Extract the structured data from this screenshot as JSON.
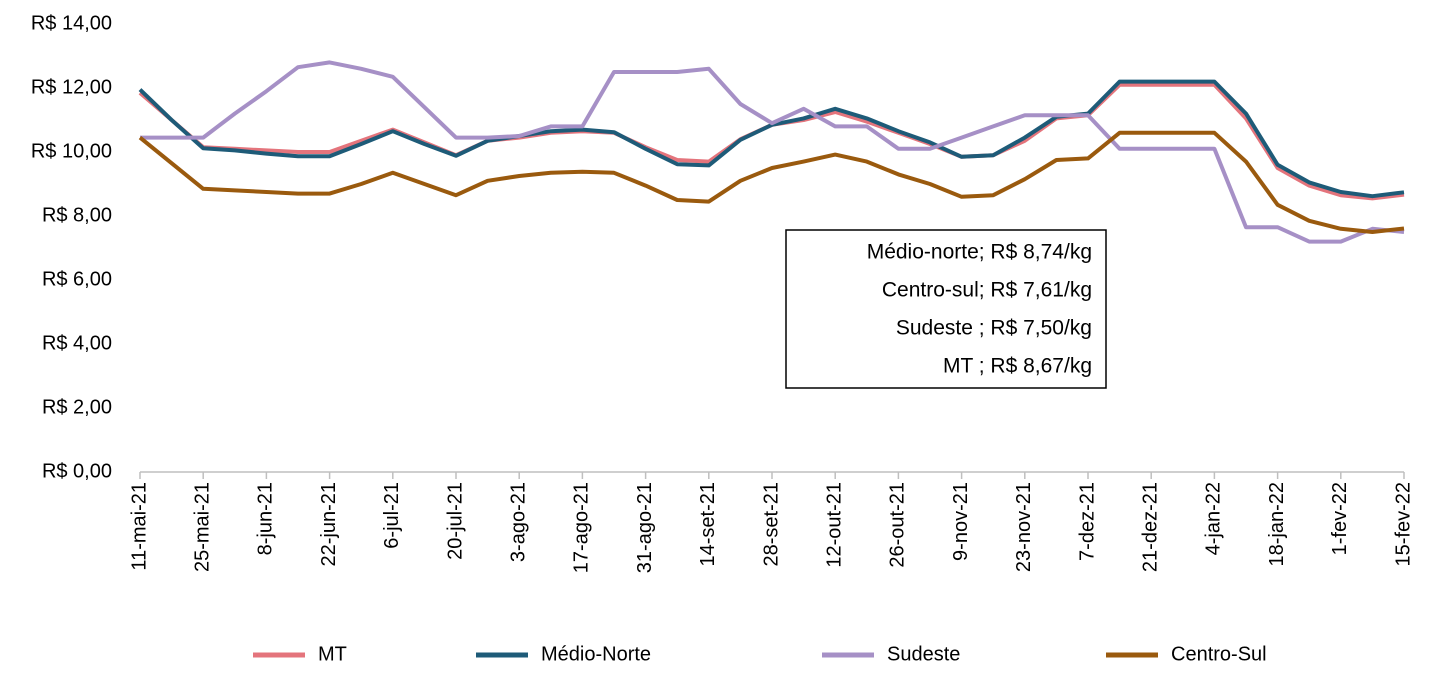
{
  "chart_data": {
    "type": "line",
    "categories": [
      "11-mai-21",
      null,
      "25-mai-21",
      null,
      "8-jun-21",
      null,
      "22-jun-21",
      null,
      "6-jul-21",
      null,
      "20-jul-21",
      null,
      "3-ago-21",
      null,
      "17-ago-21",
      null,
      "31-ago-21",
      null,
      "14-set-21",
      null,
      "28-set-21",
      null,
      "12-out-21",
      null,
      "26-out-21",
      null,
      "9-nov-21",
      null,
      "23-nov-21",
      null,
      "7-dez-21",
      null,
      "21-dez-21",
      null,
      "4-jan-22",
      null,
      "18-jan-22",
      null,
      "1-fev-22",
      null,
      "15-fev-22"
    ],
    "series": [
      {
        "name": "MT",
        "color": "#e4747c",
        "values": [
          11.85,
          11.0,
          10.15,
          10.1,
          10.05,
          10.0,
          10.0,
          10.35,
          10.7,
          10.3,
          9.9,
          10.35,
          10.45,
          10.6,
          10.65,
          10.6,
          10.15,
          9.75,
          9.7,
          10.4,
          10.85,
          11.0,
          11.25,
          10.95,
          10.6,
          10.25,
          9.85,
          9.9,
          10.35,
          11.05,
          11.15,
          12.1,
          12.1,
          12.1,
          12.1,
          11.05,
          9.5,
          8.95,
          8.65,
          8.55,
          8.67
        ]
      },
      {
        "name": "Médio-Norte",
        "color": "#1e5b78",
        "values": [
          11.95,
          11.0,
          10.12,
          10.05,
          9.95,
          9.87,
          9.87,
          10.25,
          10.65,
          10.25,
          9.88,
          10.35,
          10.5,
          10.65,
          10.7,
          10.62,
          10.1,
          9.62,
          9.58,
          10.38,
          10.85,
          11.05,
          11.35,
          11.05,
          10.65,
          10.3,
          9.85,
          9.9,
          10.45,
          11.1,
          11.2,
          12.2,
          12.2,
          12.2,
          12.2,
          11.2,
          9.6,
          9.05,
          8.75,
          8.62,
          8.74
        ]
      },
      {
        "name": "Sudeste",
        "color": "#a690c6",
        "values": [
          10.45,
          10.45,
          10.45,
          11.2,
          11.9,
          12.65,
          12.8,
          12.6,
          12.35,
          11.4,
          10.45,
          10.45,
          10.5,
          10.8,
          10.8,
          12.5,
          12.5,
          12.5,
          12.6,
          11.5,
          10.9,
          11.35,
          10.8,
          10.8,
          10.1,
          10.1,
          10.45,
          10.8,
          11.15,
          11.15,
          11.15,
          10.1,
          10.1,
          10.1,
          10.1,
          7.65,
          7.65,
          7.2,
          7.2,
          7.6,
          7.5
        ]
      },
      {
        "name": "Centro-Sul",
        "color": "#9a5a0e",
        "values": [
          10.45,
          9.65,
          8.85,
          8.8,
          8.75,
          8.7,
          8.7,
          9.0,
          9.35,
          9.0,
          8.65,
          9.1,
          9.25,
          9.35,
          9.38,
          9.35,
          8.95,
          8.5,
          8.45,
          9.1,
          9.5,
          9.7,
          9.92,
          9.7,
          9.3,
          9.0,
          8.6,
          8.65,
          9.15,
          9.75,
          9.8,
          10.6,
          10.6,
          10.6,
          10.6,
          9.7,
          8.35,
          7.85,
          7.6,
          7.5,
          7.61
        ]
      }
    ],
    "ylim": [
      0,
      14
    ],
    "yticks": [
      {
        "value": 0,
        "label": "R$ 0,00"
      },
      {
        "value": 2,
        "label": "R$ 2,00"
      },
      {
        "value": 4,
        "label": "R$ 4,00"
      },
      {
        "value": 6,
        "label": "R$ 6,00"
      },
      {
        "value": 8,
        "label": "R$ 8,00"
      },
      {
        "value": 10,
        "label": "R$ 10,00"
      },
      {
        "value": 12,
        "label": "R$ 12,00"
      },
      {
        "value": 14,
        "label": "R$ 14,00"
      }
    ],
    "annotations": [
      "Médio-norte; R$ 8,74/kg",
      "Centro-sul; R$ 7,61/kg",
      "Sudeste ; R$ 7,50/kg",
      "MT ; R$ 8,67/kg"
    ],
    "legend": "bottom"
  }
}
